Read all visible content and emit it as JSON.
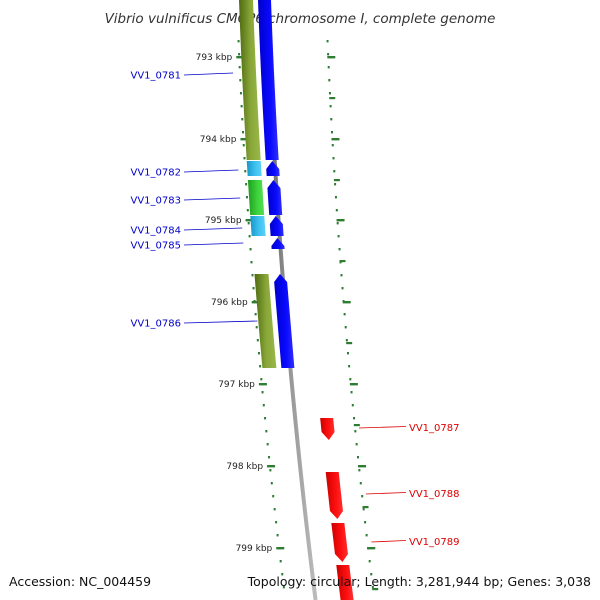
{
  "title": "Vibrio vulnificus CMCP6 chromosome I, complete genome",
  "footer": {
    "accession": "Accession: NC_004459",
    "topology": "Topology: circular; Length: 3,281,944 bp; Genes: 3,038"
  },
  "colors": {
    "reverse_label": "#0000cc",
    "forward_label": "#dd0000",
    "gene_reverse": "#0000ee",
    "gene_forward": "#ee0000",
    "cds_olive": "#7a9a2a",
    "cds_green": "#33cc33",
    "cds_cyan": "#33bbee",
    "backbone": "#888888",
    "tick": "#2e7d32"
  },
  "kbp_ticks": [
    {
      "label": "793 kbp"
    },
    {
      "label": "794 kbp"
    },
    {
      "label": "795 kbp"
    },
    {
      "label": "796 kbp"
    },
    {
      "label": "797 kbp"
    },
    {
      "label": "798 kbp"
    },
    {
      "label": "799 kbp"
    }
  ],
  "genes": [
    {
      "label": "VV1_0781",
      "strand": "reverse",
      "feature_color": "olive"
    },
    {
      "label": "VV1_0782",
      "strand": "reverse",
      "feature_color": "cyan"
    },
    {
      "label": "VV1_0783",
      "strand": "reverse",
      "feature_color": "green"
    },
    {
      "label": "VV1_0784",
      "strand": "reverse",
      "feature_color": "cyan"
    },
    {
      "label": "VV1_0785",
      "strand": "reverse",
      "feature_color": "none"
    },
    {
      "label": "VV1_0786",
      "strand": "reverse",
      "feature_color": "olive"
    },
    {
      "label": "VV1_0787",
      "strand": "forward",
      "feature_color": "none"
    },
    {
      "label": "VV1_0788",
      "strand": "forward",
      "feature_color": "none"
    },
    {
      "label": "VV1_0789",
      "strand": "forward",
      "feature_color": "none"
    }
  ]
}
